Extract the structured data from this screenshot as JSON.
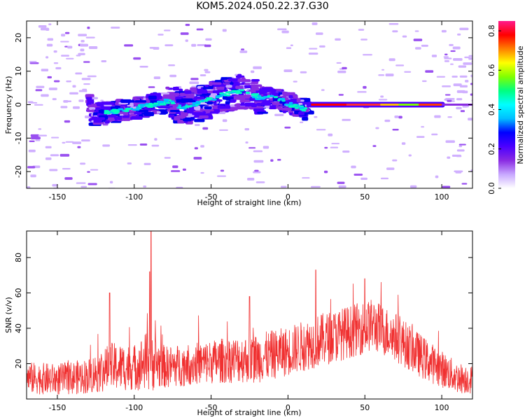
{
  "title": "KOM5.2024.050.22.37.G30",
  "colors": {
    "snr_line": "#f03030",
    "colormap": [
      "#ffffff",
      "#c8a8ff",
      "#8a2be2",
      "#4b00ff",
      "#0000ff",
      "#00bfff",
      "#00ffff",
      "#00ff80",
      "#80ff00",
      "#ffff00",
      "#ff8000",
      "#ff0000",
      "#ff1a8c"
    ]
  },
  "chart_data": [
    {
      "type": "heatmap",
      "name": "spectrogram",
      "xlabel": "Height of straight line (km)",
      "ylabel": "Frequency (Hz)",
      "xlim": [
        -170,
        120
      ],
      "ylim": [
        -25,
        25
      ],
      "xticks": [
        -150,
        -100,
        -50,
        0,
        50,
        100
      ],
      "yticks": [
        -20,
        -10,
        0,
        10,
        20
      ],
      "ridge": [
        {
          "x": -130,
          "y": -3
        },
        {
          "x": -115,
          "y": -2
        },
        {
          "x": -100,
          "y": -1
        },
        {
          "x": -90,
          "y": 0
        },
        {
          "x": -80,
          "y": 1
        },
        {
          "x": -70,
          "y": -1
        },
        {
          "x": -55,
          "y": 1
        },
        {
          "x": -45,
          "y": 3
        },
        {
          "x": -30,
          "y": 4
        },
        {
          "x": -20,
          "y": 2
        },
        {
          "x": -10,
          "y": 2
        },
        {
          "x": 0,
          "y": 0
        },
        {
          "x": 10,
          "y": -1.5
        },
        {
          "x": 15,
          "y": 0
        },
        {
          "x": 100,
          "y": 0
        }
      ],
      "colorbar": {
        "label": "Normalized spectral amplitude",
        "ticks": [
          0.0,
          0.2,
          0.4,
          0.6,
          0.8
        ],
        "tick_labels": [
          "0.0",
          "0.2",
          "0.4",
          "0.6",
          "0.8"
        ],
        "range": [
          0,
          0.85
        ]
      },
      "grid": false
    },
    {
      "type": "line",
      "name": "snr",
      "xlabel": "Height of straight line (km)",
      "ylabel": "SNR (v/v)",
      "xlim": [
        -170,
        120
      ],
      "ylim": [
        0,
        95
      ],
      "xticks": [
        -150,
        -100,
        -50,
        0,
        50,
        100
      ],
      "yticks": [
        20,
        40,
        60,
        80
      ],
      "envelope": [
        {
          "x": -170,
          "mean": 12,
          "spread": 9
        },
        {
          "x": -150,
          "mean": 11,
          "spread": 9
        },
        {
          "x": -130,
          "mean": 13,
          "spread": 10
        },
        {
          "x": -115,
          "mean": 18,
          "spread": 14
        },
        {
          "x": -100,
          "mean": 18,
          "spread": 13
        },
        {
          "x": -90,
          "mean": 22,
          "spread": 18
        },
        {
          "x": -80,
          "mean": 18,
          "spread": 12
        },
        {
          "x": -60,
          "mean": 20,
          "spread": 12
        },
        {
          "x": -40,
          "mean": 22,
          "spread": 13
        },
        {
          "x": -20,
          "mean": 23,
          "spread": 14
        },
        {
          "x": 0,
          "mean": 27,
          "spread": 14
        },
        {
          "x": 20,
          "mean": 33,
          "spread": 15
        },
        {
          "x": 40,
          "mean": 38,
          "spread": 15
        },
        {
          "x": 55,
          "mean": 42,
          "spread": 15
        },
        {
          "x": 70,
          "mean": 35,
          "spread": 14
        },
        {
          "x": 90,
          "mean": 22,
          "spread": 12
        },
        {
          "x": 110,
          "mean": 12,
          "spread": 9
        },
        {
          "x": 120,
          "mean": 11,
          "spread": 8
        }
      ],
      "peaks": [
        {
          "x": -89,
          "y": 95
        },
        {
          "x": -90,
          "y": 72
        },
        {
          "x": -116,
          "y": 60
        },
        {
          "x": -25,
          "y": 58
        },
        {
          "x": 18,
          "y": 73
        },
        {
          "x": 50,
          "y": 68
        }
      ],
      "grid": false
    }
  ]
}
